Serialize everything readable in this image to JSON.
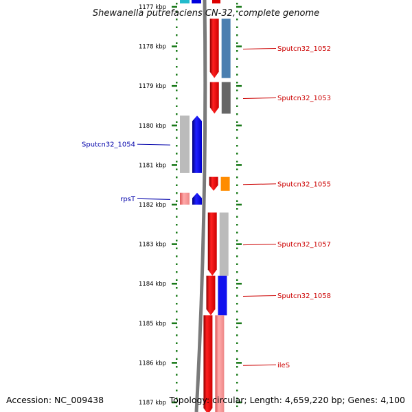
{
  "title": "Shewanella putrefaciens CN-32, complete genome",
  "accession": "Accession: NC_009438",
  "summary": "Topology: circular; Length: 4,659,220 bp; Genes: 4,100",
  "colors": {
    "tick": "#1a7a1a",
    "forward_label": "#cc0000",
    "reverse_label": "#0000aa",
    "backbone": "#7a7a7a"
  },
  "scale": {
    "labels": [
      "1177 kbp",
      "1178 kbp",
      "1179 kbp",
      "1180 kbp",
      "1181 kbp",
      "1182 kbp",
      "1183 kbp",
      "1184 kbp",
      "1185 kbp",
      "1186 kbp",
      "1187 kbp"
    ],
    "values": [
      1177,
      1178,
      1179,
      1180,
      1181,
      1182,
      1183,
      1184,
      1185,
      1186,
      1187
    ]
  },
  "forward_genes": [
    {
      "label": "Sputcn32_1052",
      "start": 1177.3,
      "end": 1178.8,
      "cog_color": "#4a7fb0"
    },
    {
      "label": "Sputcn32_1053",
      "start": 1178.9,
      "end": 1179.7,
      "cog_color": "#666666"
    },
    {
      "label": "Sputcn32_1055",
      "start": 1181.3,
      "end": 1181.65,
      "cog_color": "#ff8c00"
    },
    {
      "label": "Sputcn32_1057",
      "start": 1182.2,
      "end": 1183.8,
      "cog_color": "#bbbbbb"
    },
    {
      "label": "Sputcn32_1058",
      "start": 1183.8,
      "end": 1184.8,
      "cog_color": "#1111ee"
    },
    {
      "label": "ileS",
      "start": 1184.8,
      "end": 1187.3,
      "cog_color": "#ee8888"
    }
  ],
  "reverse_genes": [
    {
      "label": "Sputcn32_1054",
      "start": 1179.75,
      "end": 1181.2,
      "cog_color": "#bbbbbb"
    },
    {
      "label": "rpsT",
      "start": 1181.7,
      "end": 1182.0,
      "cog_color": "#ee8888"
    }
  ],
  "top_partial_gene": {
    "start": 1176.8,
    "end": 1177.0,
    "cog_color": "#22bbcc"
  }
}
